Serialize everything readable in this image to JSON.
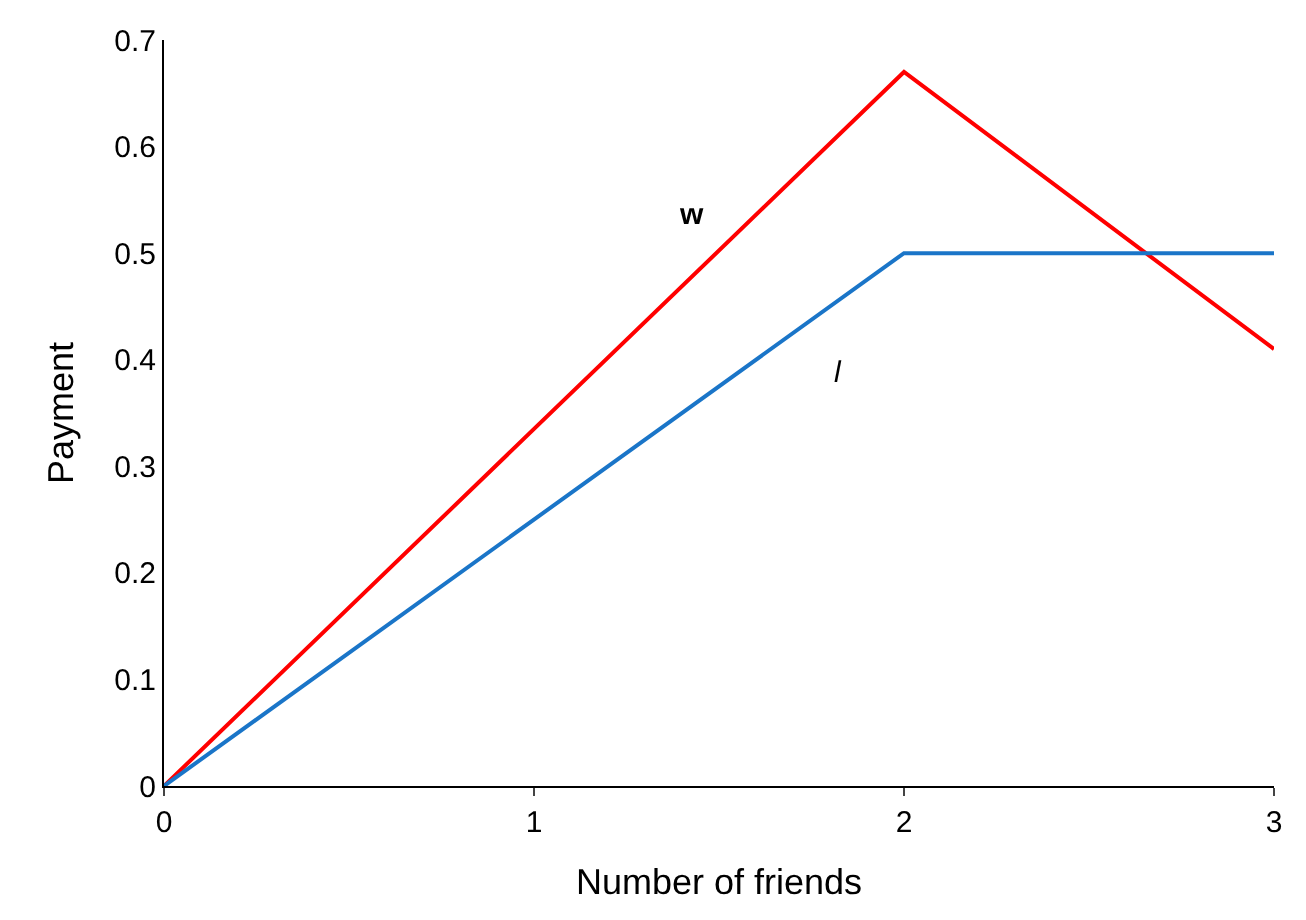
{
  "chart_data": {
    "type": "line",
    "xlabel": "Number of friends",
    "ylabel": "Payment",
    "series": [
      {
        "name": "w",
        "color": "#ff0000",
        "x": [
          0,
          2,
          3
        ],
        "values": [
          0,
          0.67,
          0.41
        ]
      },
      {
        "name": "l",
        "color": "#1a75c8",
        "x": [
          0,
          2,
          3
        ],
        "values": [
          0,
          0.5,
          0.5
        ]
      }
    ],
    "xlim": [
      0,
      3
    ],
    "xticks": [
      0,
      1,
      2,
      3
    ],
    "ylim": [
      0,
      0.7
    ],
    "yticks": [
      0,
      0.1,
      0.2,
      0.3,
      0.4,
      0.5,
      0.6,
      0.7
    ],
    "legend": false,
    "marker": "none",
    "line_style": "solid"
  }
}
